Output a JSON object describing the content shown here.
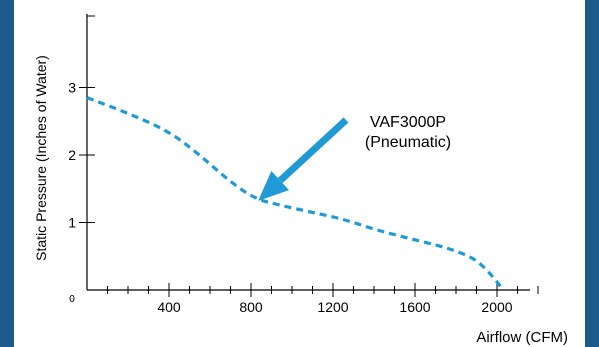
{
  "chart_data": {
    "type": "line",
    "title": "",
    "xlabel": "Airflow (CFM)",
    "ylabel": "Static Pressure (Inches of Water)",
    "xlim": [
      0,
      2200
    ],
    "ylim": [
      0,
      4
    ],
    "x_ticks": [
      400,
      800,
      1200,
      1600,
      2000
    ],
    "y_ticks": [
      1,
      2,
      3
    ],
    "origin_label": "0",
    "minor_tick_step": 100,
    "grid": false,
    "legend": "none",
    "series": [
      {
        "name": "VAF3000P\n(Pneumatic)",
        "style": "dashed",
        "color": "#1f9ad6",
        "x": [
          0,
          200,
          400,
          550,
          700,
          820,
          950,
          1100,
          1250,
          1400,
          1550,
          1700,
          1800,
          1900,
          1980,
          2030
        ],
        "y": [
          2.85,
          2.62,
          2.35,
          2.0,
          1.6,
          1.35,
          1.25,
          1.15,
          1.05,
          0.9,
          0.78,
          0.67,
          0.58,
          0.45,
          0.2,
          0.0
        ]
      }
    ],
    "annotations": [
      {
        "lines": [
          "VAF3000P",
          "(Pneumatic)"
        ],
        "arrow_to": {
          "x": 820,
          "y": 1.35
        },
        "arrow_color": "#1f9ad6"
      }
    ]
  }
}
